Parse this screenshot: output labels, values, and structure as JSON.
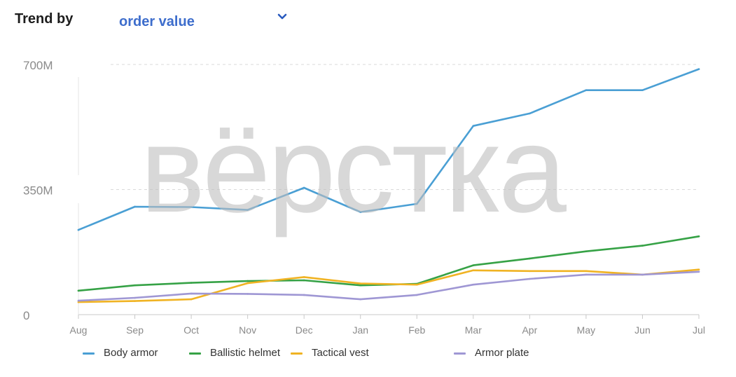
{
  "header": {
    "label": "Trend by",
    "selected_metric": "order value",
    "chevron_icon": "chevron-down-icon"
  },
  "watermark": "вёрстка",
  "colors": {
    "Body armor": "#4a9fd4",
    "Ballistic helmet": "#36a246",
    "Tactical vest": "#f0b323",
    "Armor plate": "#9f97d4",
    "accent": "#3d6dcc"
  },
  "chart_data": {
    "type": "line",
    "categories": [
      "Aug",
      "Sep",
      "Oct",
      "Nov",
      "Dec",
      "Jan",
      "Feb",
      "Mar",
      "Apr",
      "May",
      "Jun",
      "Jul"
    ],
    "y_ticks": [
      {
        "value": 0,
        "label": "0"
      },
      {
        "value": 350,
        "label": "350M"
      },
      {
        "value": 700,
        "label": "700M"
      }
    ],
    "ylim": [
      0,
      700
    ],
    "y_unit": "M",
    "grid": "horizontal dashed",
    "legend_position": "bottom",
    "series": [
      {
        "name": "Body armor",
        "values": [
          237,
          302,
          301,
          293,
          355,
          287,
          310,
          528,
          563,
          628,
          628,
          687
        ]
      },
      {
        "name": "Ballistic helmet",
        "values": [
          67,
          82,
          89,
          94,
          96,
          82,
          86,
          138,
          157,
          177,
          193,
          219
        ]
      },
      {
        "name": "Tactical vest",
        "values": [
          35,
          38,
          43,
          88,
          105,
          87,
          84,
          124,
          122,
          122,
          112,
          126
        ]
      },
      {
        "name": "Armor plate",
        "values": [
          39,
          47,
          59,
          58,
          55,
          43,
          55,
          84,
          100,
          112,
          112,
          120
        ]
      }
    ]
  }
}
